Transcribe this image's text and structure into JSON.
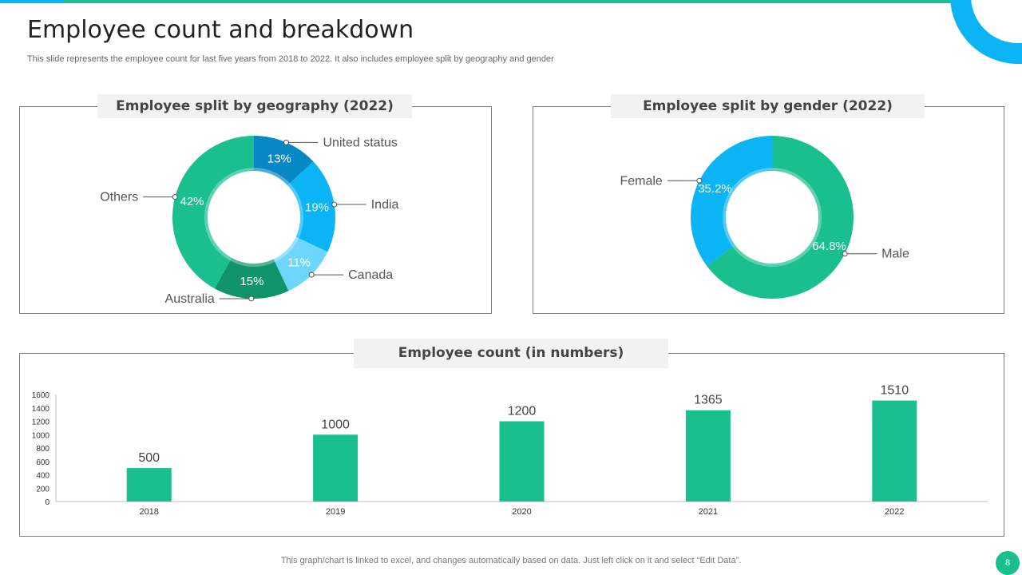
{
  "slide": {
    "title": "Employee count and breakdown",
    "subtitle": "This slide represents the employee count for last five years from 2018 to  2022. It also includes employee split by geography and gender",
    "footer": "This graph/chart is linked to excel,  and changes automatically based on data. Just left click on it and select “Edit Data”.",
    "page_number": "8"
  },
  "colors": {
    "teal": "#19bf8f",
    "blue": "#0bb4f4",
    "dark_blue": "#0787c4",
    "light_blue": "#6ed6fb",
    "dark_teal": "#11936b"
  },
  "chart_data": [
    {
      "type": "pie",
      "title": "Employee split by geography (2022)",
      "slices": [
        {
          "label": "United status",
          "value": 13,
          "value_label": "13%",
          "color": "#0787c4"
        },
        {
          "label": "India",
          "value": 19,
          "value_label": "19%",
          "color": "#0bb4f4"
        },
        {
          "label": "Canada",
          "value": 11,
          "value_label": "11%",
          "color": "#6ed6fb"
        },
        {
          "label": "Australia",
          "value": 15,
          "value_label": "15%",
          "color": "#11936b"
        },
        {
          "label": "Others",
          "value": 42,
          "value_label": "42%",
          "color": "#19bf8f"
        }
      ]
    },
    {
      "type": "pie",
      "title": "Employee split by gender (2022)",
      "slices": [
        {
          "label": "Male",
          "value": 64.8,
          "value_label": "64.8%",
          "color": "#19bf8f"
        },
        {
          "label": "Female",
          "value": 35.2,
          "value_label": "35.2%",
          "color": "#0bb4f4"
        }
      ]
    },
    {
      "type": "bar",
      "title": "Employee count (in numbers)",
      "categories": [
        "2018",
        "2019",
        "2020",
        "2021",
        "2022"
      ],
      "values": [
        500,
        1000,
        1200,
        1365,
        1510
      ],
      "ylim": [
        0,
        1600
      ],
      "yticks": [
        0,
        200,
        400,
        600,
        800,
        1000,
        1200,
        1400,
        1600
      ],
      "color": "#19bf8f",
      "grid": false
    }
  ]
}
